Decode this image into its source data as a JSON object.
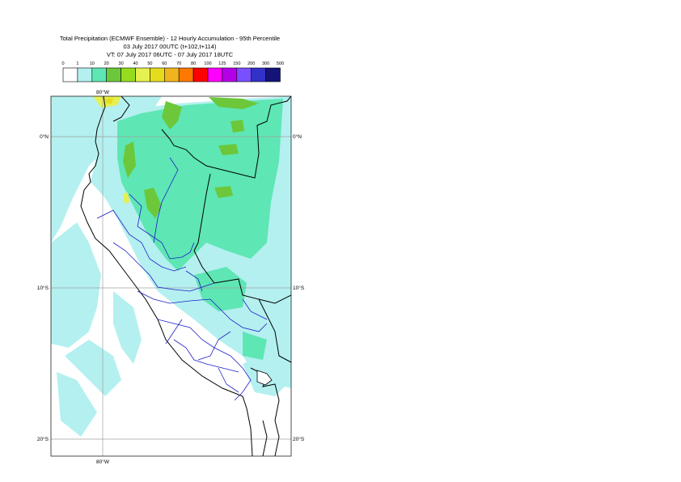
{
  "header": {
    "title": "Total Precipitation (ECMWF Ensemble) - 12 Hourly Accumulation - 95th Percentile",
    "run": "03 July 2017 00UTC (t+102,t+114)",
    "valid": "VT: 07 July 2017 06UTC - 07 July 2017 18UTC"
  },
  "legend": {
    "labels": [
      "0",
      "1",
      "10",
      "20",
      "30",
      "40",
      "50",
      "60",
      "70",
      "80",
      "100",
      "125",
      "150",
      "200",
      "300",
      "500"
    ],
    "colors": [
      "#ffffff",
      "#b4f0f0",
      "#5ee6b4",
      "#6cc83a",
      "#96dc1e",
      "#e6f050",
      "#e6dc1e",
      "#f0b41e",
      "#ff7800",
      "#ff0000",
      "#ff00ff",
      "#b400e6",
      "#7850ff",
      "#3232c8",
      "#141478"
    ]
  },
  "map": {
    "top_lon": "80°W",
    "bottom_lon": "80°W",
    "lat_left": [
      "0°N",
      "10°S",
      "20°S"
    ],
    "lat_right": [
      "0°N",
      "10°S",
      "20°S"
    ]
  }
}
